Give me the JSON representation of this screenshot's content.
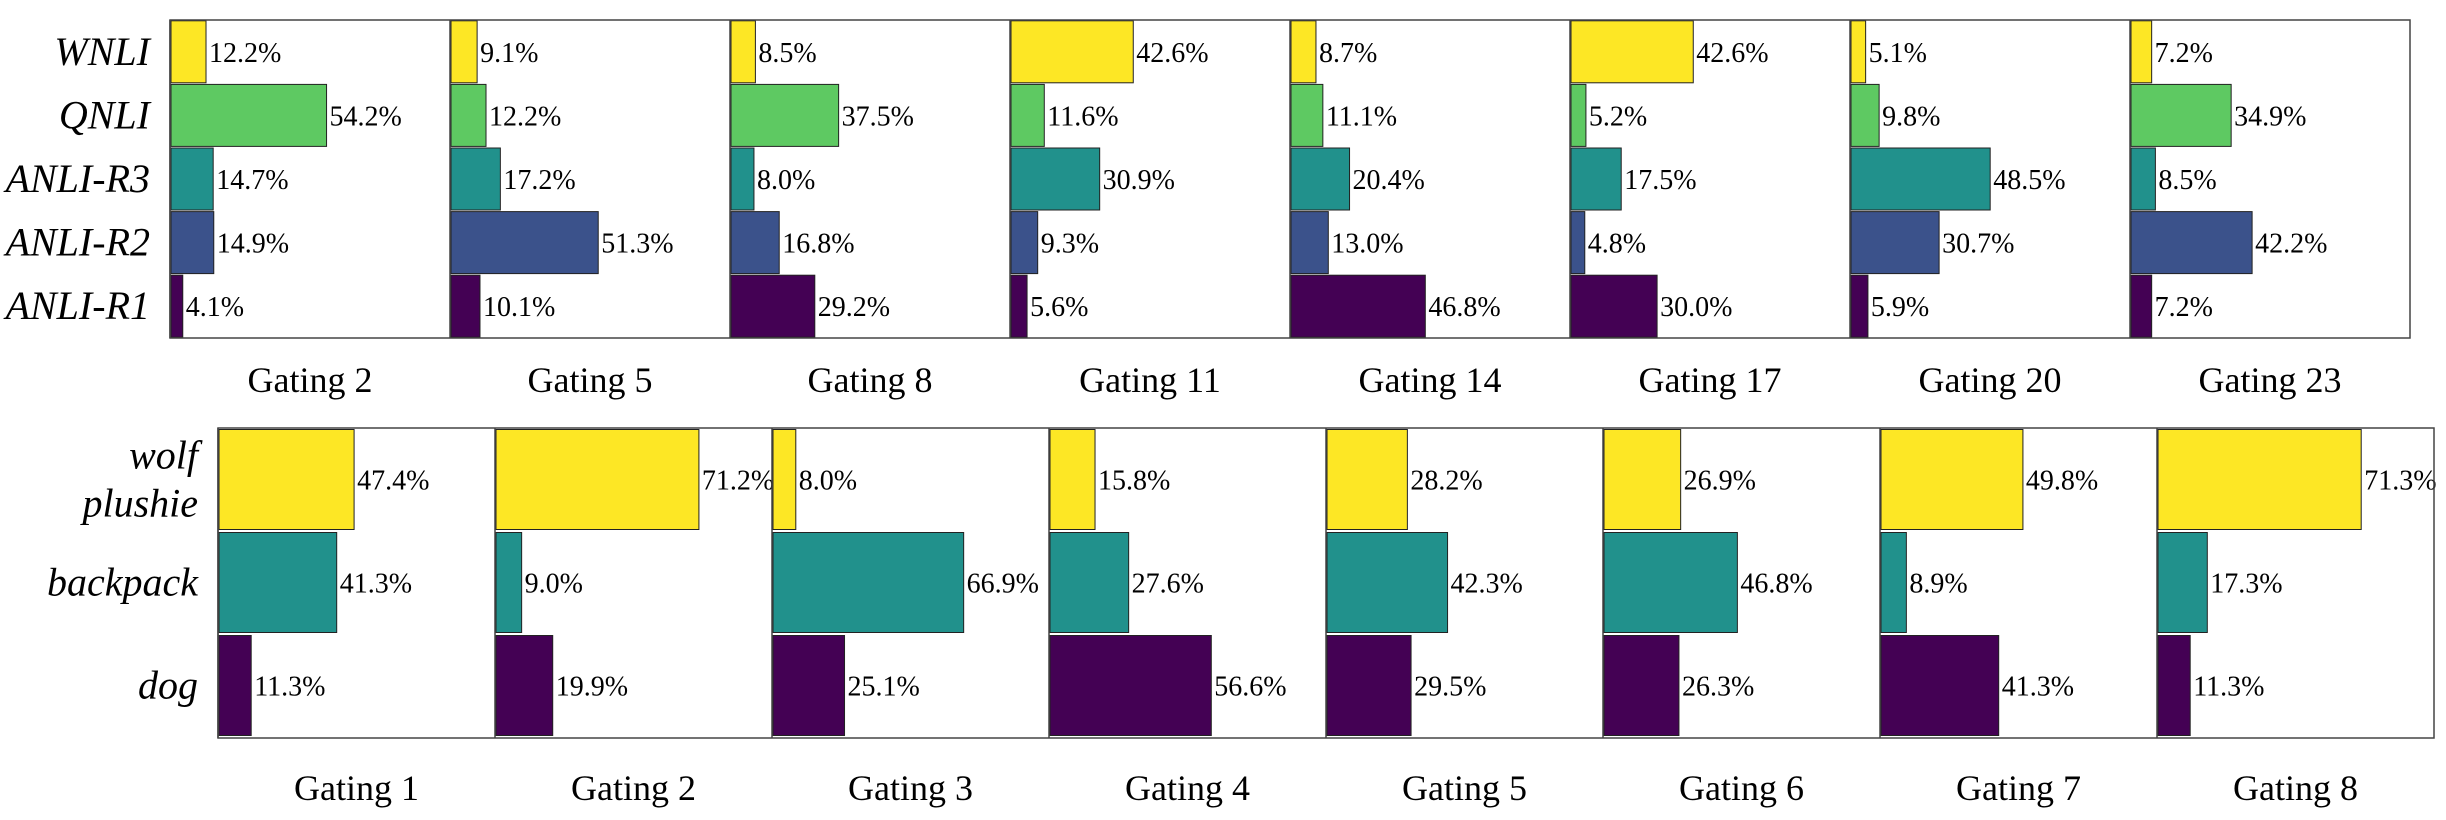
{
  "chart_data": [
    {
      "type": "bar",
      "orientation": "horizontal",
      "group": "top",
      "categories": [
        "WNLI",
        "QNLI",
        "ANLI-R3",
        "ANLI-R2",
        "ANLI-R1"
      ],
      "colors": [
        "#fde725",
        "#5ec962",
        "#21918c",
        "#3b528b",
        "#440154"
      ],
      "xlim": [
        0,
        60
      ],
      "grid": false,
      "panels": [
        {
          "title": "Gating 2",
          "values": [
            12.2,
            54.2,
            14.7,
            14.9,
            4.1
          ],
          "labels": [
            "12.2%",
            "54.2%",
            "14.7%",
            "14.9%",
            "4.1%"
          ]
        },
        {
          "title": "Gating 5",
          "values": [
            9.1,
            12.2,
            17.2,
            51.3,
            10.1
          ],
          "labels": [
            "9.1%",
            "12.2%",
            "17.2%",
            "51.3%",
            "10.1%"
          ]
        },
        {
          "title": "Gating 8",
          "values": [
            8.5,
            37.5,
            8.0,
            16.8,
            29.2
          ],
          "labels": [
            "8.5%",
            "37.5%",
            "8.0%",
            "16.8%",
            "29.2%"
          ]
        },
        {
          "title": "Gating 11",
          "values": [
            42.6,
            11.6,
            30.9,
            9.3,
            5.6
          ],
          "labels": [
            "42.6%",
            "11.6%",
            "30.9%",
            "9.3%",
            "5.6%"
          ]
        },
        {
          "title": "Gating 14",
          "values": [
            8.7,
            11.1,
            20.4,
            13.0,
            46.8
          ],
          "labels": [
            "8.7%",
            "11.1%",
            "20.4%",
            "13.0%",
            "46.8%"
          ]
        },
        {
          "title": "Gating 17",
          "values": [
            42.6,
            5.2,
            17.5,
            4.8,
            30.0
          ],
          "labels": [
            "42.6%",
            "5.2%",
            "17.5%",
            "4.8%",
            "30.0%"
          ]
        },
        {
          "title": "Gating 20",
          "values": [
            5.1,
            9.8,
            48.5,
            30.7,
            5.9
          ],
          "labels": [
            "5.1%",
            "9.8%",
            "48.5%",
            "30.7%",
            "5.9%"
          ]
        },
        {
          "title": "Gating 23",
          "values": [
            7.2,
            34.9,
            8.5,
            42.2,
            7.2
          ],
          "labels": [
            "7.2%",
            "34.9%",
            "8.5%",
            "42.2%",
            "7.2%"
          ]
        }
      ]
    },
    {
      "type": "bar",
      "orientation": "horizontal",
      "group": "bottom",
      "categories": [
        "wolf plushie",
        "backpack",
        "dog"
      ],
      "category_lines": [
        [
          "wolf",
          "plushie"
        ],
        [
          "backpack"
        ],
        [
          "dog"
        ]
      ],
      "colors": [
        "#fde725",
        "#21918c",
        "#440154"
      ],
      "xlim": [
        0,
        72
      ],
      "grid": false,
      "panels": [
        {
          "title": "Gating 1",
          "values": [
            47.4,
            41.3,
            11.3
          ],
          "labels": [
            "47.4%",
            "41.3%",
            "11.3%"
          ]
        },
        {
          "title": "Gating 2",
          "values": [
            71.2,
            9.0,
            19.9
          ],
          "labels": [
            "71.2%",
            "9.0%",
            "19.9%"
          ]
        },
        {
          "title": "Gating 3",
          "values": [
            8.0,
            66.9,
            25.1
          ],
          "labels": [
            "8.0%",
            "66.9%",
            "25.1%"
          ]
        },
        {
          "title": "Gating 4",
          "values": [
            15.8,
            27.6,
            56.6
          ],
          "labels": [
            "15.8%",
            "27.6%",
            "56.6%"
          ]
        },
        {
          "title": "Gating 5",
          "values": [
            28.2,
            42.3,
            29.5
          ],
          "labels": [
            "28.2%",
            "42.3%",
            "29.5%"
          ]
        },
        {
          "title": "Gating 6",
          "values": [
            26.9,
            46.8,
            26.3
          ],
          "labels": [
            "26.9%",
            "46.8%",
            "26.3%"
          ]
        },
        {
          "title": "Gating 7",
          "values": [
            49.8,
            8.9,
            41.3
          ],
          "labels": [
            "49.8%",
            "8.9%",
            "41.3%"
          ]
        },
        {
          "title": "Gating 8",
          "values": [
            71.3,
            17.3,
            11.3
          ],
          "labels": [
            "71.3%",
            "17.3%",
            "11.3%"
          ]
        }
      ]
    }
  ]
}
